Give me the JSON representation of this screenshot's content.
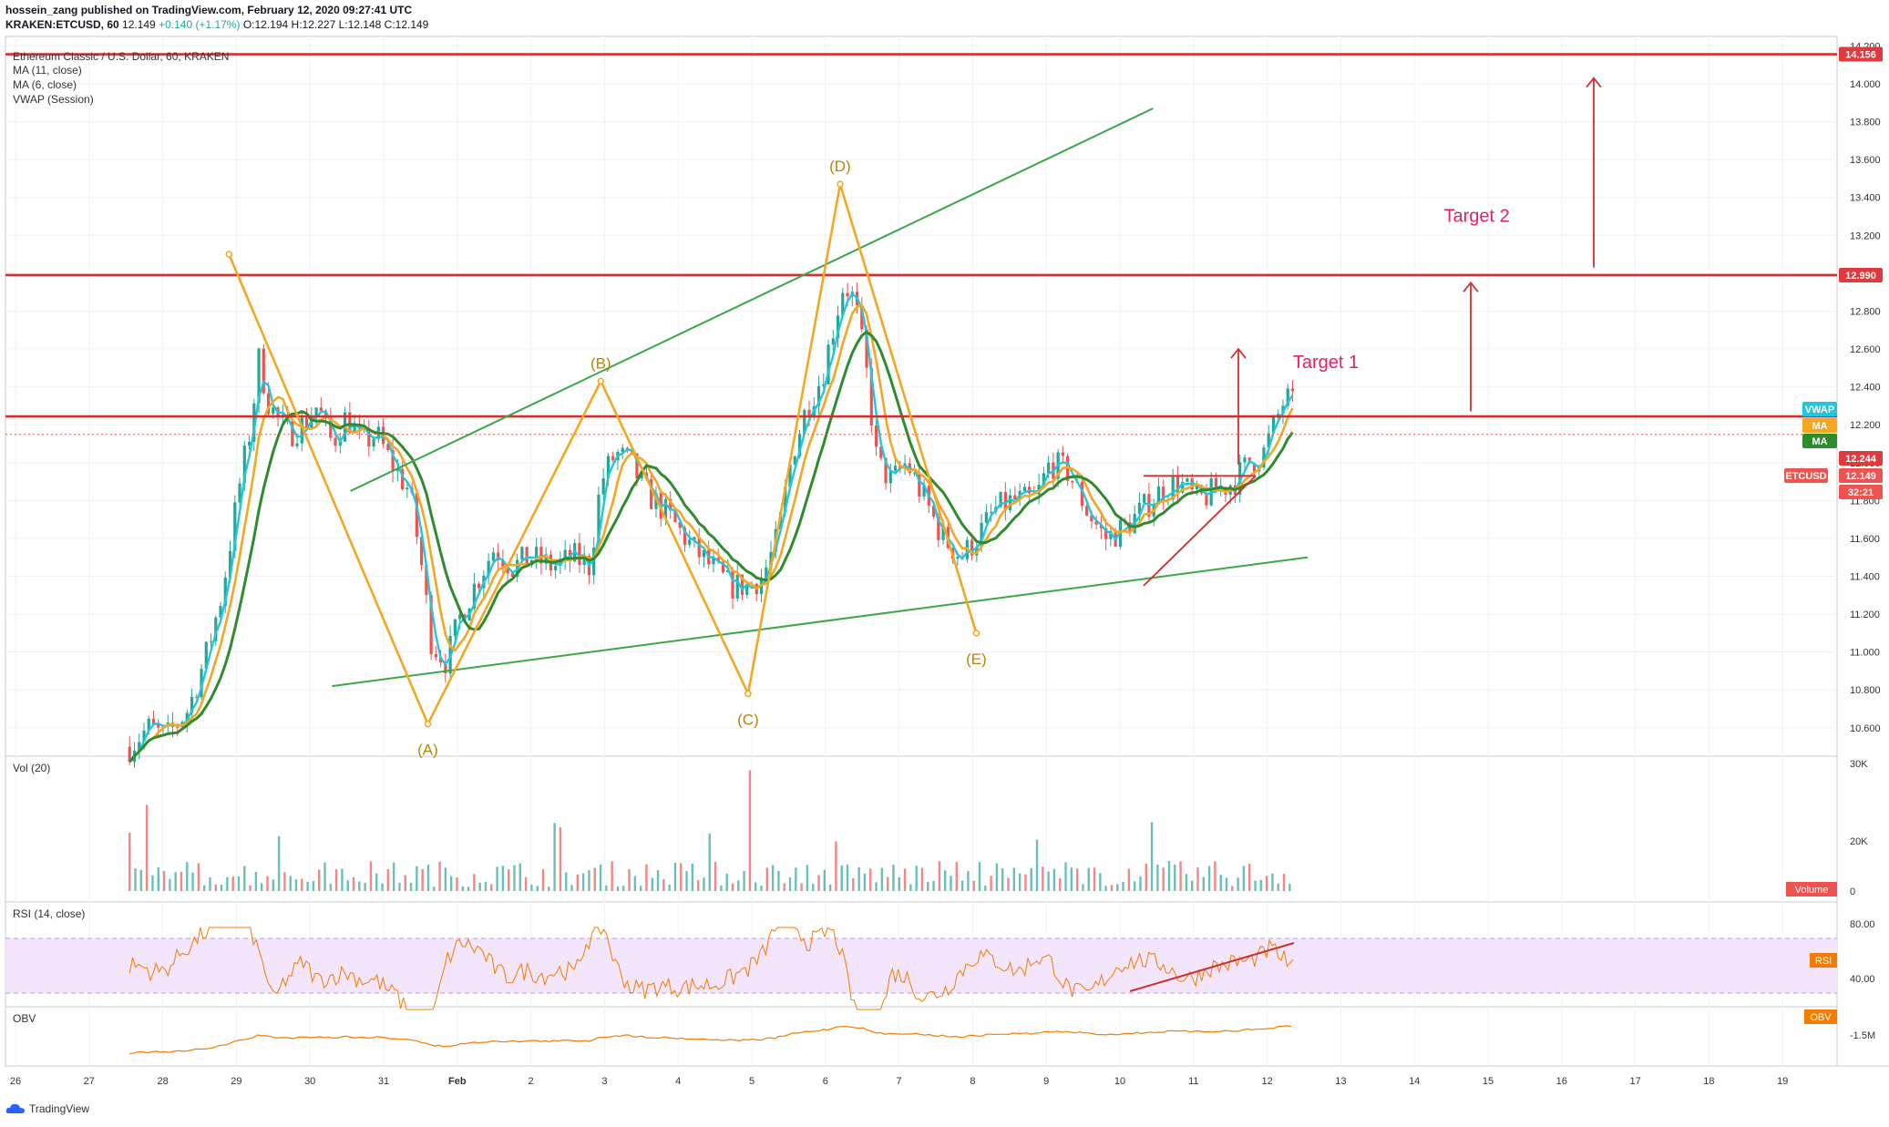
{
  "header": {
    "publisher_line": "hossein_zang published on TradingView.com, February 12, 2020 09:27:41 UTC",
    "symbol_line_prefix": "KRAKEN:ETCUSD, 60",
    "last": "12.149",
    "change": "+0.140 (+1.17%)",
    "open": "O:12.194",
    "high": "H:12.227",
    "low": "L:12.148",
    "close": "C:12.149"
  },
  "indicators": {
    "title": "Ethereum Classic / U.S. Dollar, 60, KRAKEN",
    "ma11": "MA (11, close)",
    "ma6": "MA (6, close)",
    "vwap": "VWAP (Session)"
  },
  "panes": {
    "vol": "Vol (20)",
    "rsi": "RSI (14, close)",
    "obv": "OBV"
  },
  "footer": {
    "brand": "TradingView"
  },
  "chart_data": {
    "type": "line",
    "instrument": "ETCUSD",
    "timeframe": "60",
    "x_ticks": [
      "26",
      "27",
      "28",
      "29",
      "30",
      "31",
      "Feb",
      "2",
      "3",
      "4",
      "5",
      "6",
      "7",
      "8",
      "9",
      "10",
      "11",
      "12",
      "13",
      "14",
      "15",
      "16",
      "17",
      "18",
      "19"
    ],
    "y_ticks": [
      "14.200",
      "14.000",
      "13.800",
      "13.600",
      "13.400",
      "13.200",
      "13.000",
      "12.800",
      "12.600",
      "12.400",
      "12.200",
      "12.000",
      "11.800",
      "11.600",
      "11.400",
      "11.200",
      "11.000",
      "10.800",
      "10.600"
    ],
    "ylim": [
      10.45,
      14.25
    ],
    "price_labels": [
      {
        "text": "14.156",
        "color": "#e03a3e"
      },
      {
        "text": "12.990",
        "color": "#e03a3e"
      },
      {
        "text": "VWAP",
        "color": "#26c6da"
      },
      {
        "text": "MA",
        "color": "#f5a623"
      },
      {
        "text": "MA",
        "color": "#2e8b2e"
      },
      {
        "text": "12.244",
        "color": "#e03a3e"
      },
      {
        "text": "ETCUSD",
        "color": "#ef5350"
      },
      {
        "text": "12.149",
        "color": "#ef5350"
      },
      {
        "text": "32:21",
        "color": "#ef5350"
      }
    ],
    "horizontal_levels": [
      14.156,
      12.99,
      12.244
    ],
    "last_price": 12.149,
    "wave_points": [
      {
        "label": "",
        "x": 2.9,
        "y": 13.1
      },
      {
        "label": "(A)",
        "x": 5.6,
        "y": 10.62
      },
      {
        "label": "(B)",
        "x": 7.95,
        "y": 12.43
      },
      {
        "label": "(C)",
        "x": 9.95,
        "y": 10.78
      },
      {
        "label": "(D)",
        "x": 11.2,
        "y": 13.47
      },
      {
        "label": "(E)",
        "x": 13.05,
        "y": 11.1
      }
    ],
    "trendlines": [
      {
        "from": [
          4.3,
          10.82
        ],
        "to": [
          17.55,
          11.5
        ],
        "color": "#3aa845"
      },
      {
        "from": [
          4.55,
          11.85
        ],
        "to": [
          15.45,
          13.87
        ],
        "color": "#3aa845"
      }
    ],
    "annotations": [
      {
        "text": "Target 1",
        "x": 17.35,
        "y": 12.5
      },
      {
        "text": "Target 2",
        "x": 19.4,
        "y": 13.27
      }
    ],
    "close_path": [
      [
        1.55,
        10.5
      ],
      [
        1.8,
        10.6
      ],
      [
        2.05,
        10.55
      ],
      [
        2.35,
        10.7
      ],
      [
        2.6,
        11.0
      ],
      [
        2.8,
        11.3
      ],
      [
        3.05,
        11.9
      ],
      [
        3.2,
        12.2
      ],
      [
        3.3,
        12.55
      ],
      [
        3.45,
        12.3
      ],
      [
        3.7,
        12.15
      ],
      [
        3.9,
        12.2
      ],
      [
        4.1,
        12.3
      ],
      [
        4.3,
        12.1
      ],
      [
        4.5,
        12.25
      ],
      [
        4.7,
        12.1
      ],
      [
        4.9,
        12.15
      ],
      [
        5.1,
        12.0
      ],
      [
        5.35,
        11.85
      ],
      [
        5.5,
        11.5
      ],
      [
        5.65,
        11.05
      ],
      [
        5.85,
        10.95
      ],
      [
        6.05,
        11.2
      ],
      [
        6.3,
        11.4
      ],
      [
        6.5,
        11.55
      ],
      [
        6.75,
        11.45
      ],
      [
        7.0,
        11.5
      ],
      [
        7.3,
        11.45
      ],
      [
        7.6,
        11.5
      ],
      [
        7.8,
        11.45
      ],
      [
        7.95,
        11.9
      ],
      [
        8.15,
        12.05
      ],
      [
        8.35,
        12.0
      ],
      [
        8.55,
        11.85
      ],
      [
        8.8,
        11.75
      ],
      [
        9.0,
        11.65
      ],
      [
        9.2,
        11.55
      ],
      [
        9.45,
        11.45
      ],
      [
        9.7,
        11.35
      ],
      [
        9.95,
        11.35
      ],
      [
        10.15,
        11.4
      ],
      [
        10.35,
        11.6
      ],
      [
        10.55,
        12.05
      ],
      [
        10.75,
        12.3
      ],
      [
        10.95,
        12.45
      ],
      [
        11.1,
        12.7
      ],
      [
        11.25,
        12.95
      ],
      [
        11.4,
        12.85
      ],
      [
        11.55,
        12.5
      ],
      [
        11.7,
        12.0
      ],
      [
        11.9,
        11.9
      ],
      [
        12.1,
        12.0
      ],
      [
        12.35,
        11.8
      ],
      [
        12.6,
        11.6
      ],
      [
        12.85,
        11.5
      ],
      [
        13.05,
        11.6
      ],
      [
        13.3,
        11.75
      ],
      [
        13.55,
        11.8
      ],
      [
        13.85,
        11.8
      ],
      [
        14.05,
        12.0
      ],
      [
        14.3,
        11.95
      ],
      [
        14.55,
        11.75
      ],
      [
        14.8,
        11.6
      ],
      [
        15.05,
        11.65
      ],
      [
        15.3,
        11.75
      ],
      [
        15.55,
        11.85
      ],
      [
        15.8,
        11.9
      ],
      [
        16.05,
        11.8
      ],
      [
        16.3,
        11.85
      ],
      [
        16.55,
        11.9
      ],
      [
        16.75,
        12.0
      ],
      [
        16.95,
        12.05
      ],
      [
        17.1,
        12.2
      ],
      [
        17.25,
        12.35
      ],
      [
        17.35,
        12.3
      ]
    ]
  }
}
